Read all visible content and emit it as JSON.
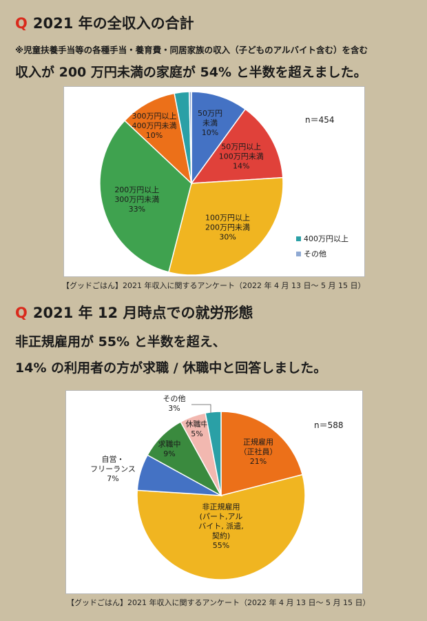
{
  "section1": {
    "q_mark": "Q",
    "title": "2021 年の全収入の合計",
    "note": "※児童扶養手当等の各種手当・養育費・同居家族の収入（子どものアルバイト含む）を含む",
    "lead": "収入が 200 万円未満の家庭が 54% と半数を超えました。",
    "source": "【グッドごはん】2021 年収入に関するアンケート（2022 年 4 月 13 日～ 5 月 15 日）"
  },
  "section2": {
    "q_mark": "Q",
    "title": "2021 年 12 月時点での就労形態",
    "lead1": "非正規雇用が 55% と半数を超え、",
    "lead2": "14% の利用者の方が求職 / 休職中と回答しました。",
    "source": "【グッドごはん】2021 年収入に関するアンケート（2022 年 4 月 13 日～ 5 月 15 日）"
  },
  "chart_data": [
    {
      "type": "pie",
      "n_label": "n＝454",
      "slices": [
        {
          "name": "50万円未満",
          "value": 10,
          "label_lines": [
            "50万円",
            "未満",
            "10%"
          ],
          "color": "#4472c4"
        },
        {
          "name": "50万円以上100万円未満",
          "value": 14,
          "label_lines": [
            "50万円以上",
            "100万円未満",
            "14%"
          ],
          "color": "#e0413a"
        },
        {
          "name": "100万円以上200万円未満",
          "value": 30,
          "label_lines": [
            "100万円以上",
            "200万円未満",
            "30%"
          ],
          "color": "#f0b521"
        },
        {
          "name": "200万円以上300万円未満",
          "value": 33,
          "label_lines": [
            "200万円以上",
            "300万円未満",
            "33%"
          ],
          "color": "#3fa24f"
        },
        {
          "name": "300万円以上400万円未満",
          "value": 10,
          "label_lines": [
            "300万円以上",
            "400万円未満",
            "10%"
          ],
          "color": "#ec7019"
        },
        {
          "name": "400万円以上",
          "value": 2.6,
          "label_lines": [],
          "color": "#2aa0a6"
        },
        {
          "name": "その他",
          "value": 0.4,
          "label_lines": [],
          "color": "#8fa9d3"
        }
      ],
      "legend": [
        {
          "name": "400万円以上",
          "color": "#2aa0a6"
        },
        {
          "name": "その他",
          "color": "#8fa9d3"
        }
      ]
    },
    {
      "type": "pie",
      "n_label": "n＝588",
      "slices": [
        {
          "name": "正規雇用（正社員）",
          "value": 21,
          "label_lines": [
            "正規雇用",
            "（正社員）",
            "21%"
          ],
          "color": "#ec7019"
        },
        {
          "name": "非正規雇用（パート,アルバイト, 派遣, 契約）",
          "value": 55,
          "label_lines": [
            "非正規雇用",
            "(パート,アル",
            "バイト, 派遣,",
            "契約)",
            "55%"
          ],
          "color": "#f0b521"
        },
        {
          "name": "自営・フリーランス",
          "value": 7,
          "label_lines": [
            "自営・",
            "フリーランス",
            "7%"
          ],
          "color": "#4472c4"
        },
        {
          "name": "求職中",
          "value": 9,
          "label_lines": [
            "求職中",
            "9%"
          ],
          "color": "#3a8a3e"
        },
        {
          "name": "休職中",
          "value": 5,
          "label_lines": [
            "休職中",
            "5%"
          ],
          "color": "#f2b8b0"
        },
        {
          "name": "その他",
          "value": 3,
          "label_lines": [
            "その他",
            "3%"
          ],
          "color": "#2aa0a6"
        }
      ]
    }
  ]
}
